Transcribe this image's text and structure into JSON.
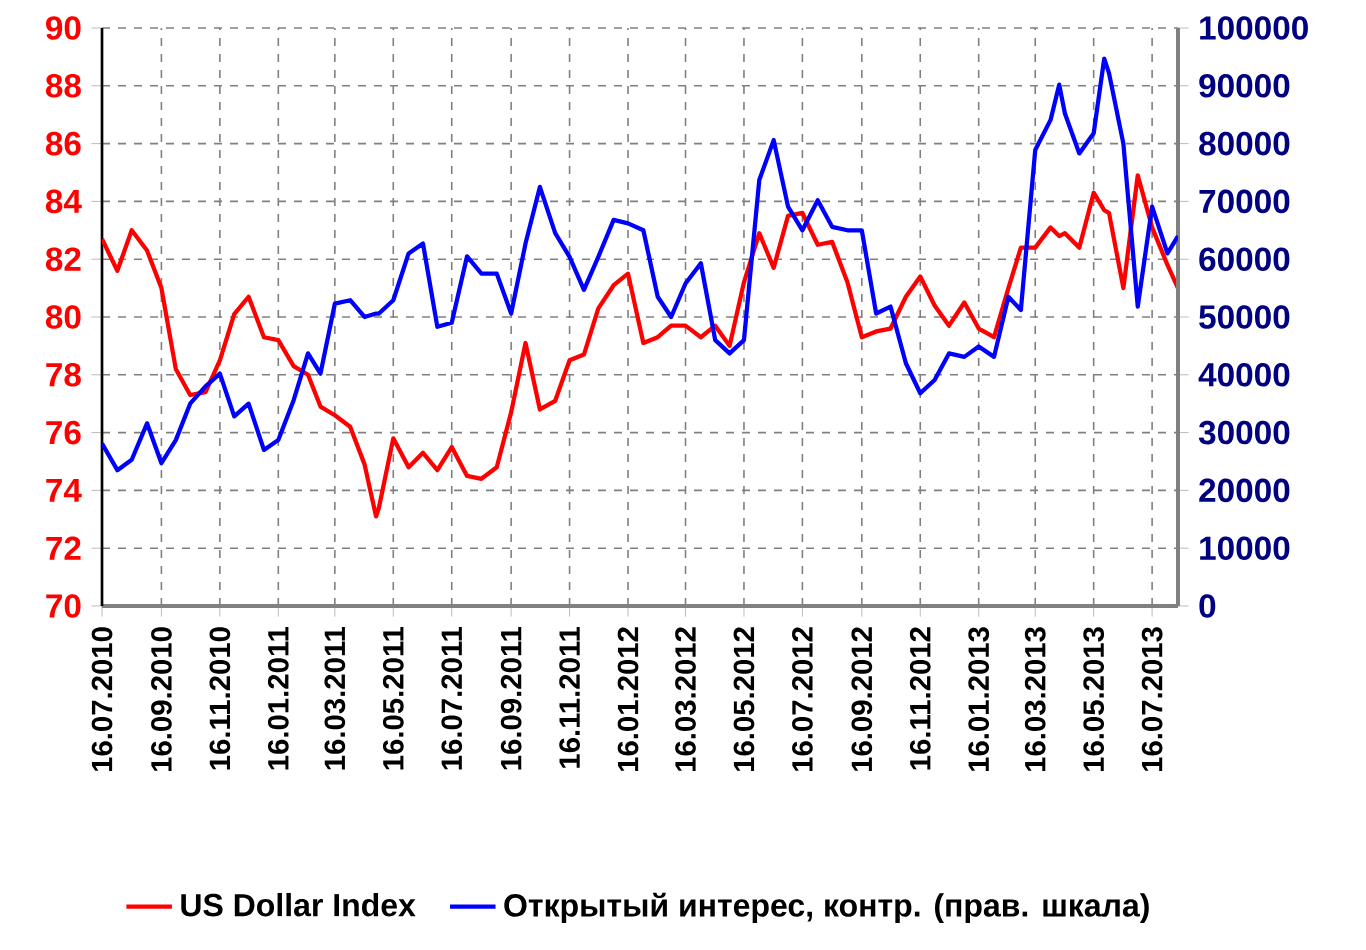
{
  "chart_data": {
    "type": "line",
    "x": [
      "2010-07-16",
      "2010-08-01",
      "2010-08-16",
      "2010-09-01",
      "2010-09-16",
      "2010-10-01",
      "2010-10-16",
      "2010-11-01",
      "2010-11-16",
      "2010-12-01",
      "2010-12-16",
      "2011-01-01",
      "2011-01-16",
      "2011-02-01",
      "2011-02-16",
      "2011-03-01",
      "2011-03-16",
      "2011-04-01",
      "2011-04-16",
      "2011-04-28",
      "2011-05-01",
      "2011-05-16",
      "2011-06-01",
      "2011-06-16",
      "2011-07-01",
      "2011-07-16",
      "2011-08-01",
      "2011-08-16",
      "2011-09-01",
      "2011-09-16",
      "2011-10-01",
      "2011-10-16",
      "2011-11-01",
      "2011-11-16",
      "2011-12-01",
      "2011-12-16",
      "2012-01-01",
      "2012-01-16",
      "2012-02-01",
      "2012-02-16",
      "2012-03-01",
      "2012-03-16",
      "2012-04-01",
      "2012-04-16",
      "2012-05-01",
      "2012-05-16",
      "2012-06-01",
      "2012-06-16",
      "2012-07-01",
      "2012-07-16",
      "2012-08-01",
      "2012-08-16",
      "2012-09-01",
      "2012-09-16",
      "2012-10-01",
      "2012-10-16",
      "2012-11-01",
      "2012-11-16",
      "2012-12-01",
      "2012-12-16",
      "2013-01-01",
      "2013-01-16",
      "2013-02-01",
      "2013-02-16",
      "2013-03-01",
      "2013-03-16",
      "2013-04-01",
      "2013-04-10",
      "2013-04-16",
      "2013-05-01",
      "2013-05-16",
      "2013-05-27",
      "2013-06-01",
      "2013-06-16",
      "2013-07-01",
      "2013-07-16",
      "2013-08-01",
      "2013-08-12"
    ],
    "series": [
      {
        "name": "US Dollar Index",
        "color": "#ff0000",
        "values": [
          82.7,
          81.6,
          83.0,
          82.3,
          81.0,
          78.2,
          77.3,
          77.4,
          78.5,
          80.1,
          80.7,
          79.3,
          79.2,
          78.3,
          78.0,
          76.9,
          76.6,
          76.2,
          74.9,
          73.1,
          73.4,
          75.8,
          74.8,
          75.3,
          74.7,
          75.5,
          74.5,
          74.4,
          74.8,
          76.7,
          79.1,
          76.8,
          77.1,
          78.5,
          78.7,
          80.3,
          81.1,
          81.5,
          79.1,
          79.3,
          79.7,
          79.7,
          79.3,
          79.7,
          79.0,
          81.2,
          82.9,
          81.7,
          83.5,
          83.6,
          82.5,
          82.6,
          81.2,
          79.3,
          79.5,
          79.6,
          80.7,
          81.4,
          80.4,
          79.7,
          80.5,
          79.6,
          79.3,
          81.0,
          82.4,
          82.4,
          83.1,
          82.8,
          82.9,
          82.4,
          84.3,
          83.7,
          83.6,
          81.0,
          84.9,
          83.1,
          81.8,
          81.0
        ]
      },
      {
        "name": "Открытый интерес, контр. (прав. шкала)",
        "color": "#0000ff",
        "axis": "y2",
        "values": [
          28100,
          23500,
          25300,
          31600,
          24700,
          28700,
          35000,
          38000,
          40200,
          32800,
          35000,
          27000,
          28700,
          35600,
          43700,
          40200,
          52300,
          52900,
          50000,
          50600,
          50600,
          52900,
          61000,
          62700,
          48300,
          49000,
          60500,
          57500,
          57500,
          50600,
          62700,
          72500,
          64500,
          60400,
          54700,
          60400,
          66800,
          66200,
          65000,
          53500,
          50000,
          55800,
          59300,
          46000,
          43700,
          46000,
          73700,
          80600,
          69100,
          65000,
          70200,
          65600,
          65000,
          65000,
          50600,
          51800,
          42000,
          36800,
          39100,
          43700,
          43100,
          44900,
          43100,
          53500,
          51200,
          78900,
          84100,
          90200,
          85200,
          78300,
          81800,
          94700,
          92200,
          80000,
          51800,
          69100,
          61000,
          64000
        ]
      }
    ],
    "xlim": [
      "2010-07-16",
      "2013-08-12"
    ],
    "xticks": [
      {
        "value": "2010-07-16",
        "label": "16.07.2010"
      },
      {
        "value": "2010-09-16",
        "label": "16.09.2010"
      },
      {
        "value": "2010-11-16",
        "label": "16.11.2010"
      },
      {
        "value": "2011-01-16",
        "label": "16.01.2011"
      },
      {
        "value": "2011-03-16",
        "label": "16.03.2011"
      },
      {
        "value": "2011-05-16",
        "label": "16.05.2011"
      },
      {
        "value": "2011-07-16",
        "label": "16.07.2011"
      },
      {
        "value": "2011-09-16",
        "label": "16.09.2011"
      },
      {
        "value": "2011-11-16",
        "label": "16.11.2011"
      },
      {
        "value": "2012-01-16",
        "label": "16.01.2012"
      },
      {
        "value": "2012-03-16",
        "label": "16.03.2012"
      },
      {
        "value": "2012-05-16",
        "label": "16.05.2012"
      },
      {
        "value": "2012-07-16",
        "label": "16.07.2012"
      },
      {
        "value": "2012-09-16",
        "label": "16.09.2012"
      },
      {
        "value": "2012-11-16",
        "label": "16.11.2012"
      },
      {
        "value": "2013-01-16",
        "label": "16.01.2013"
      },
      {
        "value": "2013-03-16",
        "label": "16.03.2013"
      },
      {
        "value": "2013-05-16",
        "label": "16.05.2013"
      },
      {
        "value": "2013-07-16",
        "label": "16.07.2013"
      }
    ],
    "ylim": [
      70,
      90
    ],
    "yticks": [
      70,
      72,
      74,
      76,
      78,
      80,
      82,
      84,
      86,
      88,
      90
    ],
    "y2lim": [
      0,
      100000
    ],
    "y2ticks": [
      0,
      10000,
      20000,
      30000,
      40000,
      50000,
      60000,
      70000,
      80000,
      90000,
      100000
    ],
    "grid": true,
    "legend": "bottom",
    "marker": "none",
    "line_style": "solid"
  }
}
